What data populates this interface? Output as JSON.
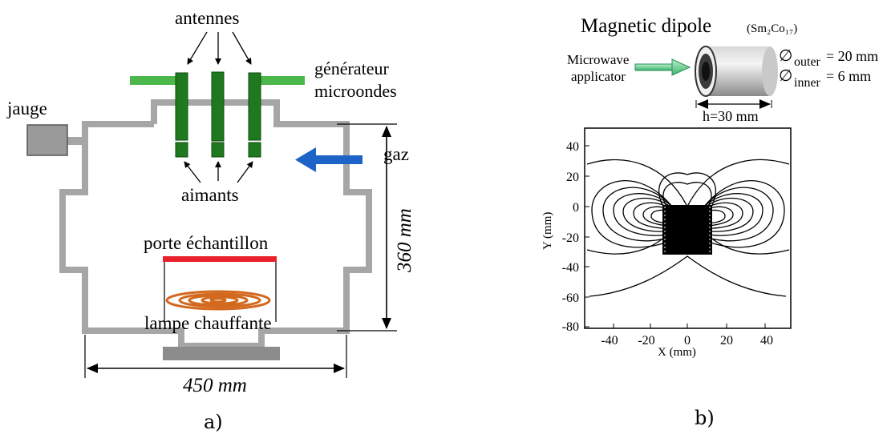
{
  "panel_a": {
    "antennes": "antennes",
    "generateur_line1": "générateur",
    "generateur_line2": "microondes",
    "jauge": "jauge",
    "gaz": "gaz",
    "aimants": "aimants",
    "porte": "porte échantillon",
    "lampe": "lampe chauffante",
    "height_dim": "360 mm",
    "width_dim": "450 mm",
    "caption": "a)",
    "colors": {
      "chamber": "#a6a6a6",
      "antenna": "#1f7a1f",
      "waveguide": "#4cb84c",
      "gas_arrow": "#1e64c8",
      "sample_holder": "#e8202a",
      "lamp": "#d2691e",
      "gauge": "#9a9a9a"
    }
  },
  "panel_b": {
    "title": "Magnetic dipole",
    "material": "(Sm₂Co₁₇)",
    "applicator_line1": "Microwave",
    "applicator_line2": "applicator",
    "outer_label": "∅",
    "outer_sub": "outer",
    "outer_val": "= 20 mm",
    "inner_label": "∅",
    "inner_sub": "inner",
    "inner_val": "= 6 mm",
    "h_label": "h=30 mm",
    "caption": "b)",
    "plot": {
      "xlabel": "X (mm)",
      "ylabel": "Y (mm)",
      "xticks": [
        "-40",
        "-20",
        "0",
        "20",
        "40"
      ],
      "yticks": [
        "40",
        "20",
        "0",
        "-20",
        "-40",
        "-60",
        "-80"
      ]
    }
  }
}
